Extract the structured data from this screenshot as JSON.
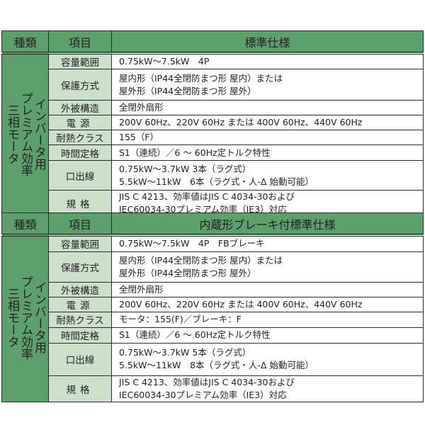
{
  "tables": [
    {
      "headers": {
        "kind": "種類",
        "item": "項目",
        "spec": "標準仕様"
      },
      "kind_lines": [
        "インバータ用",
        "プレミアム効率",
        "三相モータ"
      ],
      "rows": [
        {
          "item": "容量範囲",
          "lines": [
            "0.75kW〜7.5kW　4P"
          ]
        },
        {
          "item": "保護方式",
          "lines": [
            "屋内形（IP44全閉防まつ形 屋内）または",
            "屋外形（IP44全閉防まつ形 屋外）"
          ]
        },
        {
          "item": "外被構造",
          "lines": [
            "全閉外扇形"
          ]
        },
        {
          "item": "電源",
          "lines": [
            "200V 60Hz、220V 60Hz または 400V 60Hz、440V 60Hz"
          ]
        },
        {
          "item": "耐熱クラス",
          "lines": [
            "155（F）"
          ]
        },
        {
          "item": "時間定格",
          "lines": [
            "S1（連続）／6 〜 60Hz定トルク特性"
          ]
        },
        {
          "item": "口出線",
          "lines": [
            "0.75kW〜3.7kW 3本（ラグ式）",
            "5.5kW〜11kW　6本（ラグ式・人-Δ 始動可能）"
          ]
        },
        {
          "item": "規格",
          "lines": [
            "JIS C 4213、効率値はJIS C 4034-30および",
            "IEC60034-30プレミアム効率（IE3）対応"
          ]
        }
      ]
    },
    {
      "headers": {
        "kind": "種類",
        "item": "項目",
        "spec": "内蔵形ブレーキ付標準仕様"
      },
      "kind_lines": [
        "インバータ用",
        "プレミアム効率",
        "三相モータ"
      ],
      "rows": [
        {
          "item": "容量範囲",
          "lines": [
            "0.75kW〜7.5kW　4P　FBブレーキ"
          ]
        },
        {
          "item": "保護方式",
          "lines": [
            "屋内形（IP44全閉防まつ形 屋内）または",
            "屋外形（IP44全閉防まつ形 屋外）"
          ]
        },
        {
          "item": "外被構造",
          "lines": [
            "全閉外扇形"
          ]
        },
        {
          "item": "電源",
          "lines": [
            "200V 60Hz、220V 60Hz または 400V 60Hz、440V 60Hz"
          ]
        },
        {
          "item": "耐熱クラス",
          "lines": [
            "モータ：155(F)／ブレーキ：F"
          ]
        },
        {
          "item": "時間定格",
          "lines": [
            "S1（連続）／6 〜 60Hz定トルク特性"
          ]
        },
        {
          "item": "口出線",
          "lines": [
            "0.75kW〜3.7kW 5本（ラグ式）",
            "5.5kW〜11kW　8本（ラグ式・人-Δ 始動可能）"
          ]
        },
        {
          "item": "規格",
          "lines": [
            "JIS C 4213、効率値はJIS C 4034-30および",
            "IEC60034-30プレミアム効率（IE3）対応"
          ]
        }
      ]
    }
  ],
  "colors": {
    "header_green": "#5e9f6e",
    "item_green": "#cde0cc",
    "border": "#2a2a2a"
  }
}
